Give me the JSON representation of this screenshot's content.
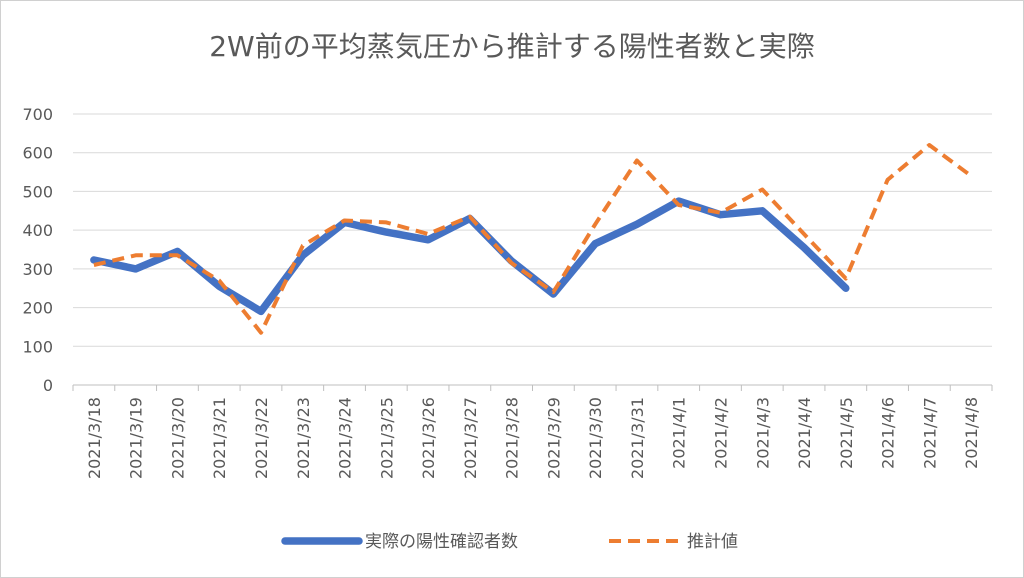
{
  "chart_data": {
    "type": "line",
    "title": "2W前の平均蒸気圧から推計する陽性者数と実際",
    "xlabel": "",
    "ylabel": "",
    "ylim": [
      0,
      700
    ],
    "yticks": [
      "0",
      "100",
      "200",
      "300",
      "400",
      "500",
      "600",
      "700"
    ],
    "grid": true,
    "legend_position": "bottom",
    "categories": [
      "2021/3/18",
      "2021/3/19",
      "2021/3/20",
      "2021/3/21",
      "2021/3/22",
      "2021/3/23",
      "2021/3/24",
      "2021/3/25",
      "2021/3/26",
      "2021/3/27",
      "2021/3/28",
      "2021/3/29",
      "2021/3/30",
      "2021/3/31",
      "2021/4/1",
      "2021/4/2",
      "2021/4/3",
      "2021/4/4",
      "2021/4/5",
      "2021/4/6",
      "2021/4/7",
      "2021/4/8"
    ],
    "series": [
      {
        "name": "実際の陽性確認者数",
        "color": "#4472c4",
        "style": "solid",
        "values": [
          323,
          300,
          345,
          255,
          190,
          335,
          420,
          395,
          375,
          430,
          320,
          235,
          365,
          415,
          475,
          440,
          450,
          355,
          250,
          null,
          null,
          null
        ]
      },
      {
        "name": "推計値",
        "color": "#ed7d31",
        "style": "dashed",
        "values": [
          310,
          335,
          335,
          270,
          135,
          360,
          425,
          420,
          390,
          435,
          315,
          240,
          415,
          580,
          465,
          445,
          505,
          390,
          275,
          530,
          620,
          540
        ]
      }
    ]
  }
}
